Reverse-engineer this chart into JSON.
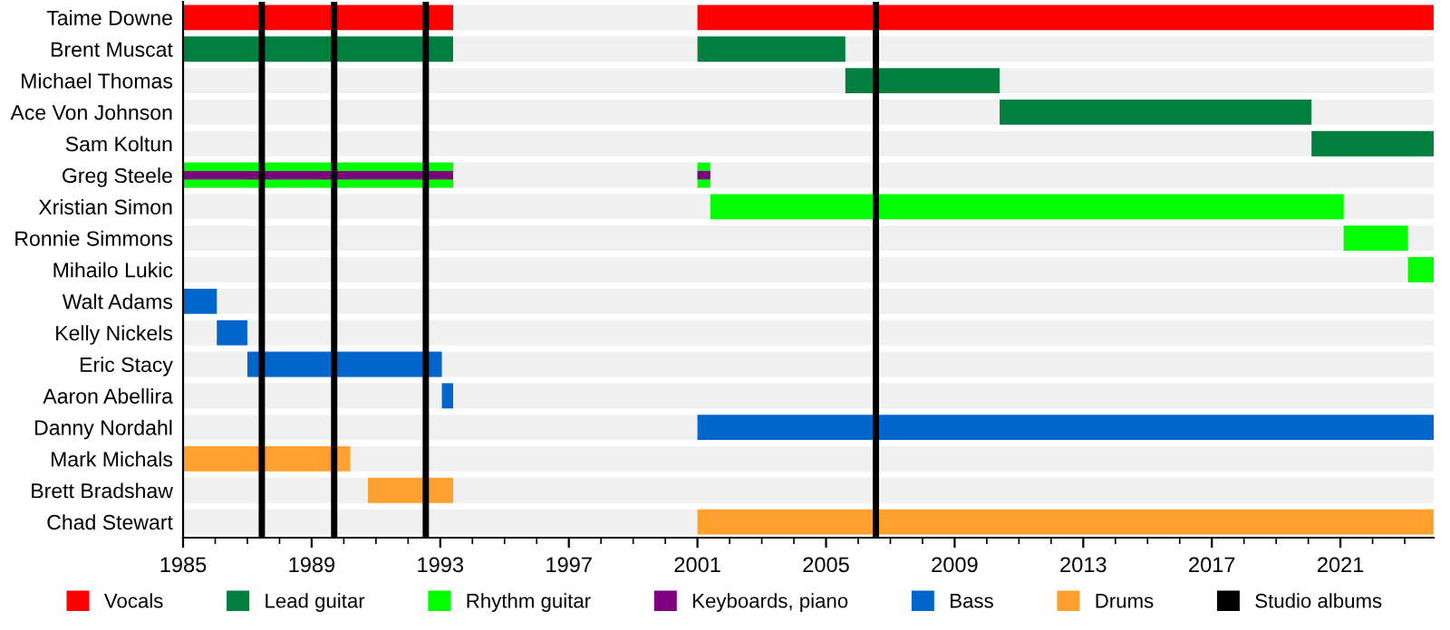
{
  "chart_data": {
    "type": "bar",
    "orientation": "horizontal",
    "categories": [
      "Taime Downe",
      "Brent Muscat",
      "Michael Thomas",
      "Ace Von Johnson",
      "Sam Koltun",
      "Greg Steele",
      "Xristian Simon",
      "Ronnie Simmons",
      "Mihailo Lukic",
      "Walt Adams",
      "Kelly Nickels",
      "Eric Stacy",
      "Aaron Abellira",
      "Danny Nordahl",
      "Mark Michals",
      "Brett Bradshaw",
      "Chad Stewart"
    ],
    "series": [
      {
        "name": "Vocals",
        "color": "#ff0000",
        "base": [
          1985,
          null,
          null,
          null,
          null,
          null,
          null,
          null,
          null,
          null,
          null,
          null,
          null,
          null,
          null,
          null,
          null
        ],
        "values": [
          8.4,
          null,
          null,
          null,
          null,
          null,
          null,
          null,
          null,
          null,
          null,
          null,
          null,
          null,
          null,
          null,
          null
        ]
      },
      {
        "name": "Lead guitar",
        "color": "#007f3f",
        "base": [
          null,
          1985,
          2005.6,
          2010.4,
          2020.1,
          null,
          null,
          null,
          null,
          null,
          null,
          null,
          null,
          null,
          null,
          null,
          null
        ],
        "values": [
          null,
          8.4,
          4.8,
          9.7,
          3.8,
          null,
          null,
          null,
          null,
          null,
          null,
          null,
          null,
          null,
          null,
          null,
          null
        ]
      },
      {
        "name": "Rhythm guitar",
        "color": "#00ff00",
        "base": [
          null,
          null,
          null,
          null,
          null,
          1985,
          2001.4,
          2021.1,
          2023.1,
          null,
          null,
          null,
          null,
          null,
          null,
          null,
          null
        ],
        "values": [
          null,
          null,
          null,
          null,
          null,
          8.4,
          19.7,
          2.0,
          0.8,
          null,
          null,
          null,
          null,
          null,
          null,
          null,
          null
        ]
      },
      {
        "name": "Keyboards, piano",
        "color": "#7f007f",
        "base": [
          null,
          null,
          null,
          null,
          null,
          1985,
          null,
          null,
          null,
          null,
          null,
          null,
          null,
          null,
          null,
          null,
          null
        ],
        "values": [
          null,
          null,
          null,
          null,
          null,
          8.4,
          null,
          null,
          null,
          null,
          null,
          null,
          null,
          null,
          null,
          null,
          null
        ]
      },
      {
        "name": "Bass",
        "color": "#0066cc",
        "base": [
          null,
          null,
          null,
          null,
          null,
          null,
          null,
          null,
          null,
          1985,
          1986.05,
          1987.0,
          1993.05,
          2001,
          null,
          null,
          null
        ],
        "values": [
          null,
          null,
          null,
          null,
          null,
          null,
          null,
          null,
          null,
          1.05,
          0.95,
          6.05,
          0.35,
          22.9,
          null,
          null,
          null
        ]
      },
      {
        "name": "Drums",
        "color": "#ffa02f",
        "base": [
          null,
          null,
          null,
          null,
          null,
          null,
          null,
          null,
          null,
          null,
          null,
          null,
          null,
          null,
          1985,
          1990.75,
          2001
        ],
        "values": [
          null,
          null,
          null,
          null,
          null,
          null,
          null,
          null,
          null,
          null,
          null,
          null,
          null,
          null,
          5.2,
          2.65,
          22.9
        ]
      },
      {
        "color": "#ff0000",
        "base": [
          2001,
          null,
          null,
          null,
          null,
          null,
          null,
          null,
          null,
          null,
          null,
          null,
          null,
          null,
          null,
          null,
          null
        ],
        "values": [
          22.9,
          null,
          null,
          null,
          null,
          null,
          null,
          null,
          null,
          null,
          null,
          null,
          null,
          null,
          null,
          null,
          null
        ]
      },
      {
        "color": "#007f3f",
        "base": [
          null,
          2001,
          null,
          null,
          null,
          null,
          null,
          null,
          null,
          null,
          null,
          null,
          null,
          null,
          null,
          null,
          null
        ],
        "values": [
          null,
          4.6,
          null,
          null,
          null,
          null,
          null,
          null,
          null,
          null,
          null,
          null,
          null,
          null,
          null,
          null,
          null
        ]
      },
      {
        "color": "#00ff00",
        "base": [
          null,
          null,
          null,
          null,
          null,
          2001,
          null,
          null,
          null,
          null,
          null,
          null,
          null,
          null,
          null,
          null,
          null
        ],
        "values": [
          null,
          null,
          null,
          null,
          null,
          0.4,
          null,
          null,
          null,
          null,
          null,
          null,
          null,
          null,
          null,
          null,
          null
        ]
      },
      {
        "color": "#7f007f",
        "base": [
          null,
          null,
          null,
          null,
          null,
          2001,
          null,
          null,
          null,
          null,
          null,
          null,
          null,
          null,
          null,
          null,
          null
        ],
        "values": [
          null,
          null,
          null,
          null,
          null,
          0.4,
          null,
          null,
          null,
          null,
          null,
          null,
          null,
          null,
          null,
          null,
          null
        ]
      }
    ],
    "ref_lines": [
      {
        "axis": "x",
        "value": 1987.45,
        "label": "Studio albums",
        "color": "#000000"
      },
      {
        "axis": "x",
        "value": 1989.7,
        "label": null,
        "color": "#000000"
      },
      {
        "axis": "x",
        "value": 1992.55,
        "label": null,
        "color": "#000000"
      },
      {
        "axis": "x",
        "value": 2006.55,
        "label": null,
        "color": "#000000"
      }
    ],
    "xlim": [
      1985,
      2023.9
    ],
    "xticks": [
      1985,
      1989,
      1993,
      1997,
      2001,
      2005,
      2009,
      2013,
      2017,
      2021
    ],
    "legend": "bottom"
  }
}
